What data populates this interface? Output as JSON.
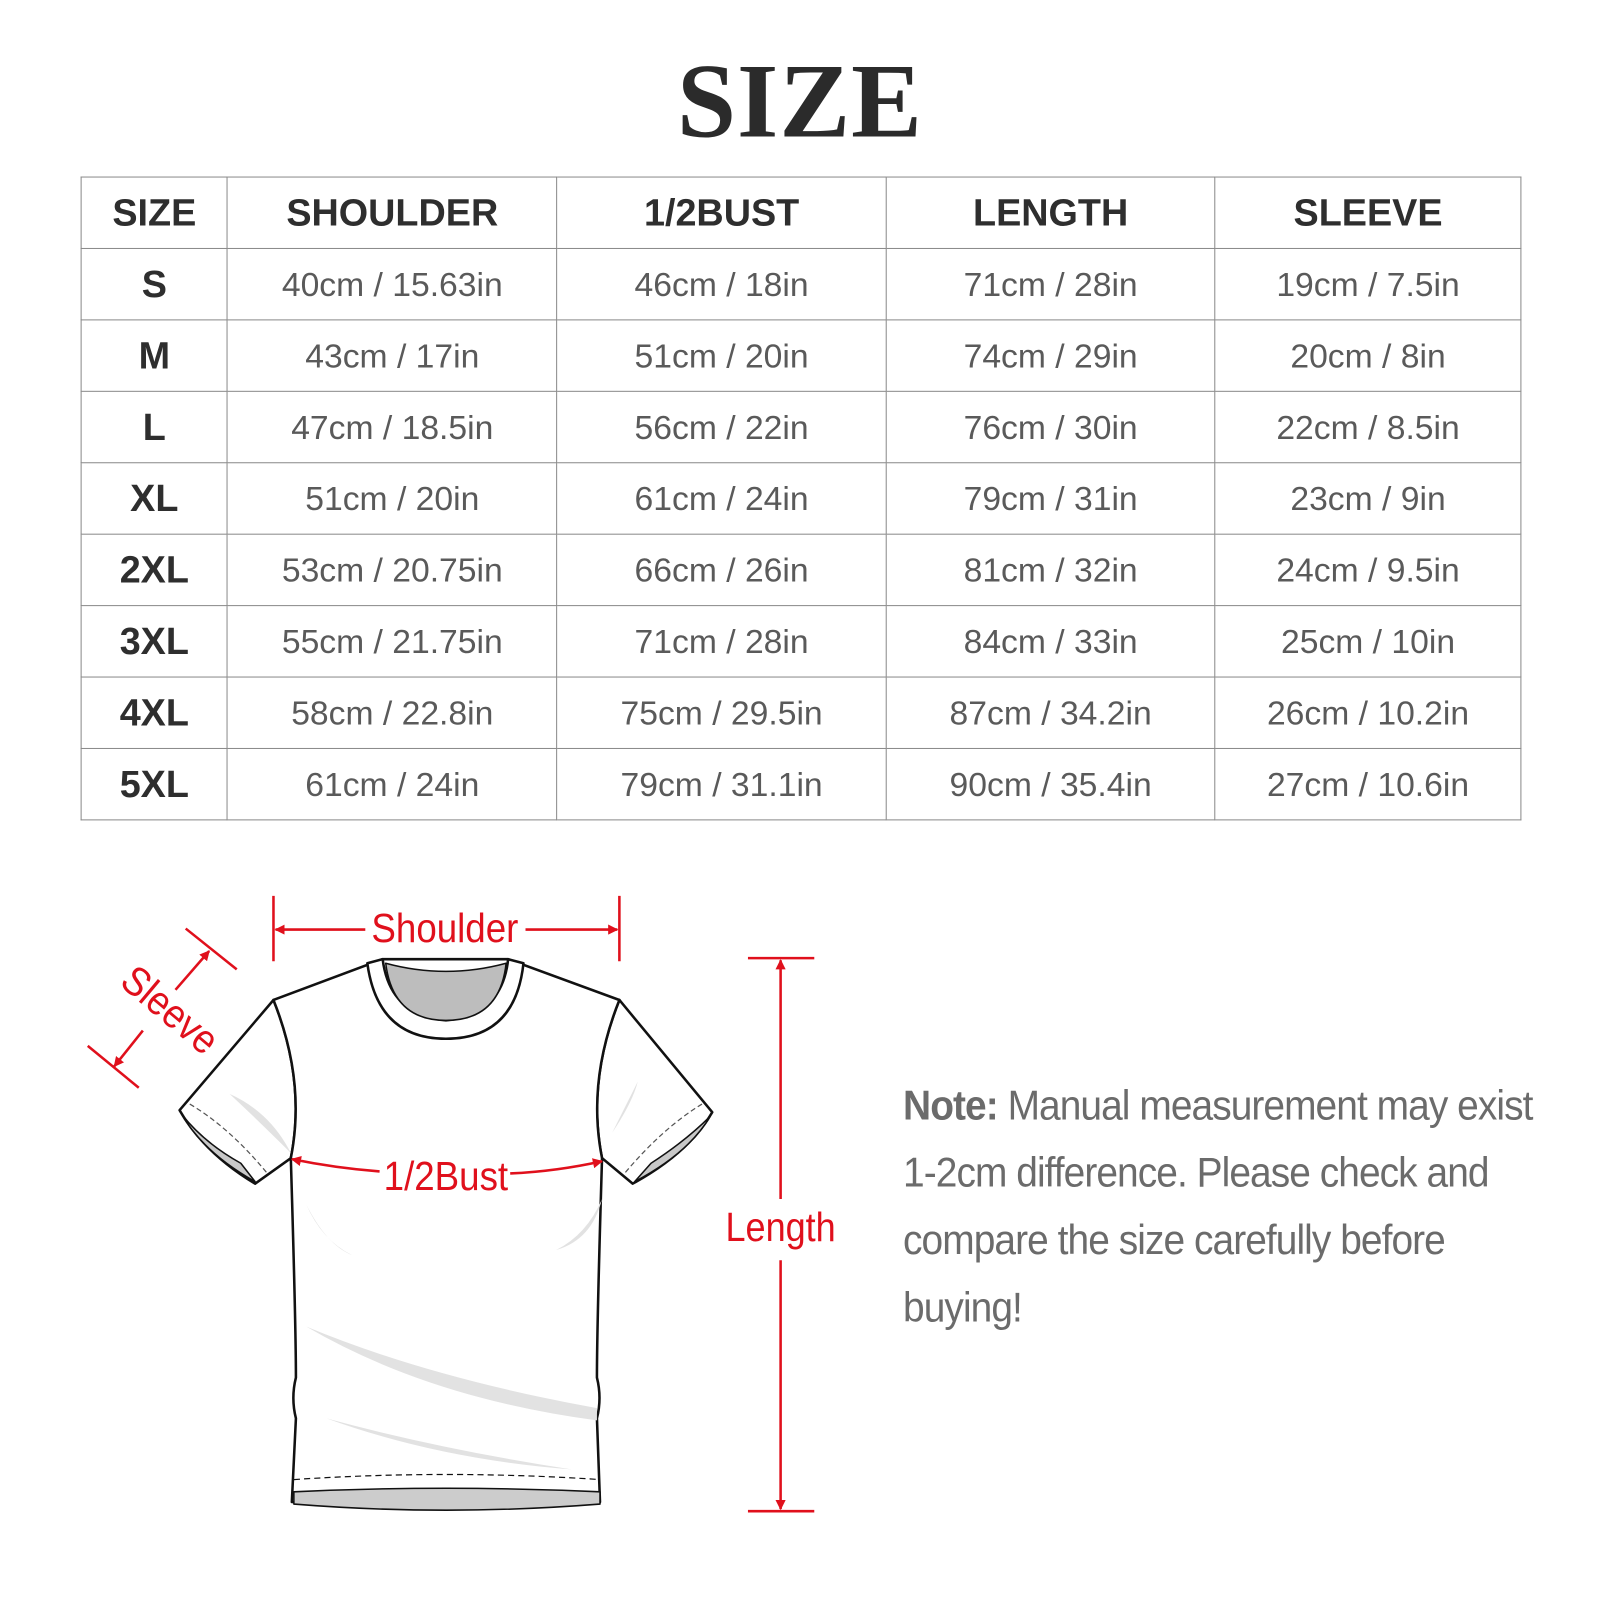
{
  "title": "SIZE",
  "table": {
    "headers": [
      "SIZE",
      "SHOULDER",
      "1/2BUST",
      "LENGTH",
      "SLEEVE"
    ],
    "rows": [
      [
        "S",
        "40cm / 15.63in",
        "46cm / 18in",
        "71cm / 28in",
        "19cm / 7.5in"
      ],
      [
        "M",
        "43cm / 17in",
        "51cm / 20in",
        "74cm / 29in",
        "20cm / 8in"
      ],
      [
        "L",
        "47cm / 18.5in",
        "56cm / 22in",
        "76cm / 30in",
        "22cm / 8.5in"
      ],
      [
        "XL",
        "51cm / 20in",
        "61cm / 24in",
        "79cm / 31in",
        "23cm / 9in"
      ],
      [
        "2XL",
        "53cm / 20.75in",
        "66cm / 26in",
        "81cm / 32in",
        "24cm / 9.5in"
      ],
      [
        "3XL",
        "55cm / 21.75in",
        "71cm / 28in",
        "84cm / 33in",
        "25cm / 10in"
      ],
      [
        "4XL",
        "58cm / 22.8in",
        "75cm / 29.5in",
        "87cm / 34.2in",
        "26cm / 10.2in"
      ],
      [
        "5XL",
        "61cm / 24in",
        "79cm / 31.1in",
        "90cm / 35.4in",
        "27cm / 10.6in"
      ]
    ]
  },
  "diagram": {
    "labels": {
      "shoulder": "Shoulder",
      "sleeve": "Sleeve",
      "bust": "1/2Bust",
      "length": "Length"
    },
    "annotation_color": "#e0101c"
  },
  "note": {
    "label": "Note:",
    "text": " Manual measurement may exist 1-2cm difference. Please check and compare the size carefully before buying!"
  }
}
